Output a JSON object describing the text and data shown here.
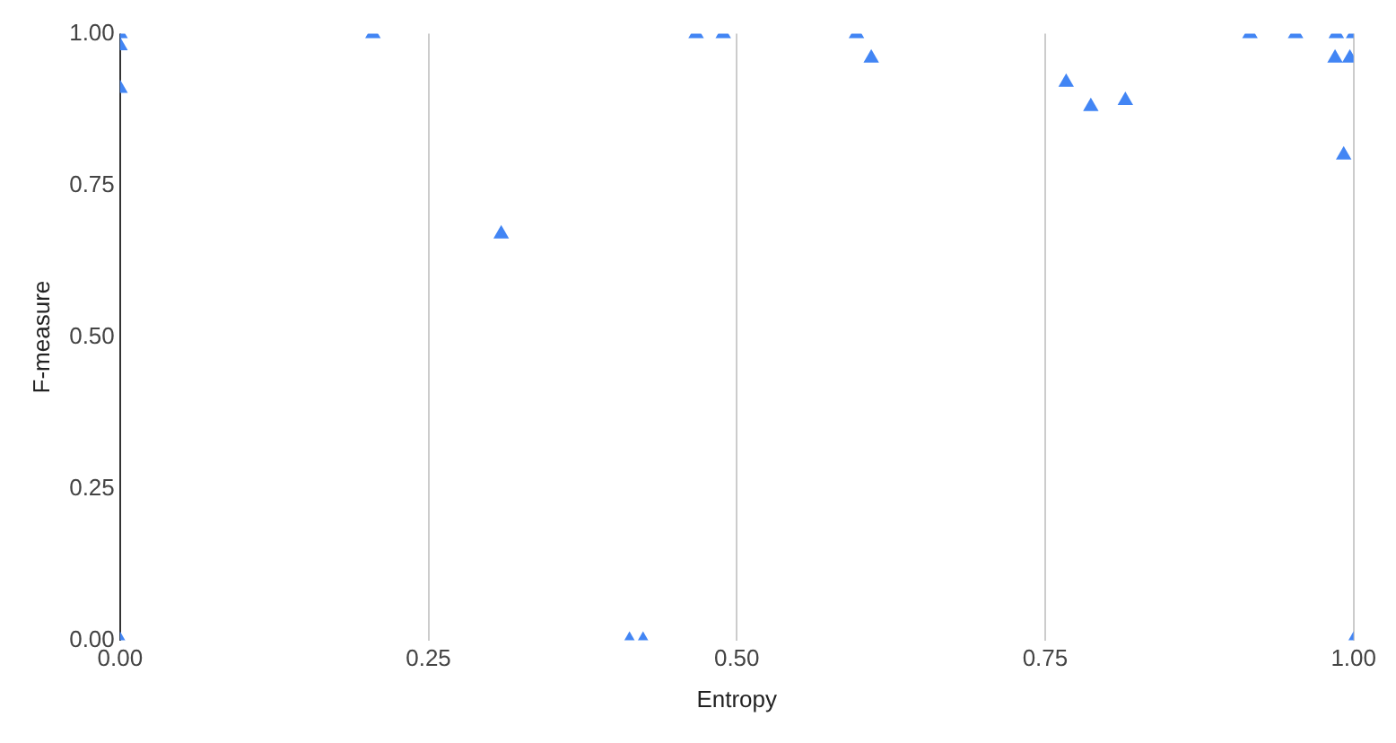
{
  "chart_data": {
    "type": "scatter",
    "xlabel": "Entropy",
    "ylabel": "F-measure",
    "x": [
      0,
      0,
      0,
      0,
      0.205,
      0.309,
      0.413,
      0.424,
      0.467,
      0.489,
      0.597,
      0.609,
      0.767,
      0.787,
      0.815,
      0.916,
      0.953,
      0.986,
      1.0,
      0.985,
      0.997,
      0.992,
      1.0
    ],
    "series": [
      {
        "color": "#4285f4",
        "values": [
          1,
          0.98,
          0.91,
          0,
          1,
          0.67,
          0,
          0,
          1,
          1,
          1,
          0.96,
          0.92,
          0.88,
          0.89,
          1,
          1,
          1,
          1,
          0.96,
          0.96,
          0.8,
          0
        ]
      }
    ],
    "xlim": [
      0,
      1
    ],
    "ylim": [
      0,
      1
    ],
    "xticks": [
      {
        "value": 0,
        "label": "0.00"
      },
      {
        "value": 0.25,
        "label": "0.25"
      },
      {
        "value": 0.5,
        "label": "0.50"
      },
      {
        "value": 0.75,
        "label": "0.75"
      },
      {
        "value": 1,
        "label": "1.00"
      }
    ],
    "yticks": [
      {
        "value": 0,
        "label": "0.00"
      },
      {
        "value": 0.25,
        "label": "0.25"
      },
      {
        "value": 0.5,
        "label": "0.50"
      },
      {
        "value": 0.75,
        "label": "0.75"
      },
      {
        "value": 1,
        "label": "1.00"
      }
    ],
    "grid": "x",
    "marker": "triangle",
    "legend": false
  }
}
